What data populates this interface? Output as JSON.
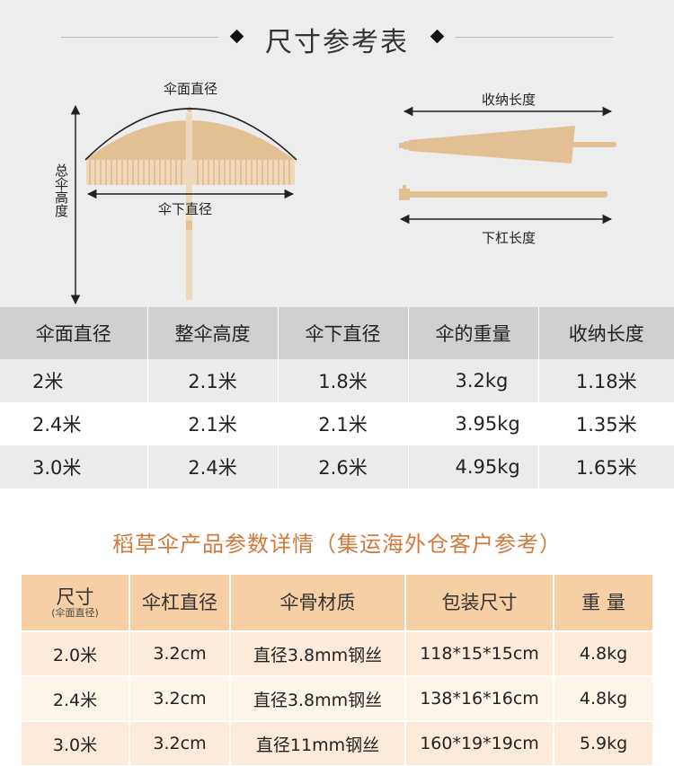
{
  "page_title": "尺寸参考表",
  "diagram": {
    "canopy_diameter": "伞面直径",
    "total_height": "总伞高度",
    "under_diameter": "伞下直径",
    "folded_length": "收纳长度",
    "lower_pole_length": "下杠长度",
    "umbrella_color": "#e3bf94"
  },
  "size_table": {
    "headers": [
      "伞面直径",
      "整伞高度",
      "伞下直径",
      "伞的重量",
      "收纳长度"
    ],
    "rows": [
      [
        "2米",
        "2.1米",
        "1.8米",
        "3.2kg",
        "1.18米"
      ],
      [
        "2.4米",
        "2.1米",
        "2.1米",
        "3.95kg",
        "1.35米"
      ],
      [
        "3.0米",
        "2.4米",
        "2.6米",
        "4.95kg",
        "1.65米"
      ]
    ]
  },
  "product_title": "稻草伞产品参数详情（集运海外仓客户参考）",
  "param_table": {
    "headers": [
      "尺寸",
      "伞杠直径",
      "伞骨材质",
      "包装尺寸",
      "重 量"
    ],
    "size_note": "(伞面直径)",
    "rows": [
      [
        "2.0米",
        "3.2cm",
        "直径3.8mm钢丝",
        "118*15*15cm",
        "4.8kg"
      ],
      [
        "2.4米",
        "3.2cm",
        "直径3.8mm钢丝",
        "138*16*16cm",
        "4.8kg"
      ],
      [
        "3.0米",
        "3.2cm",
        "直径11mm钢丝",
        "160*19*19cm",
        "5.9kg"
      ]
    ]
  }
}
